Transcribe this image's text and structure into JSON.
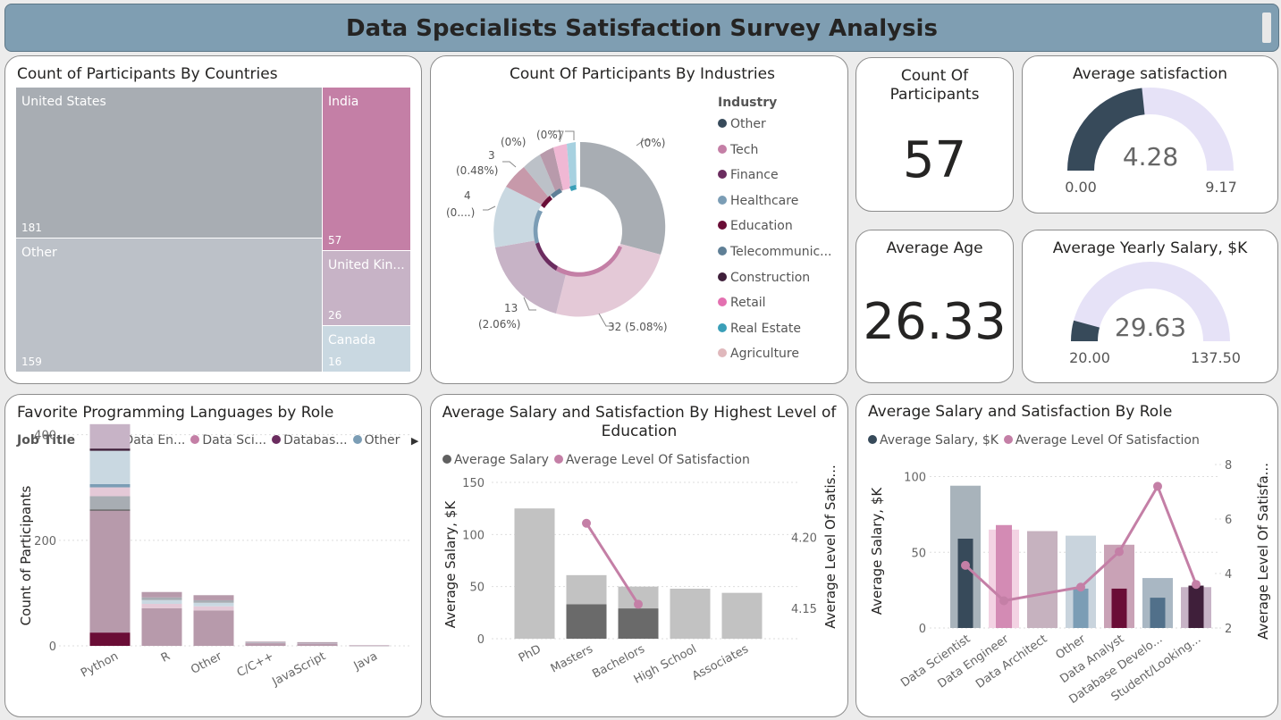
{
  "header": {
    "title": "Data Specialists Satisfaction Survey Analysis"
  },
  "countries": {
    "title": "Count of Participants By Countries",
    "cells": [
      {
        "name": "United States",
        "value": "181",
        "color": "#a8adb3"
      },
      {
        "name": "Other",
        "value": "159",
        "color": "#bcc1c8"
      },
      {
        "name": "India",
        "value": "57",
        "color": "#c47fa6"
      },
      {
        "name": "United Kin...",
        "value": "26",
        "color": "#c7b3c6"
      },
      {
        "name": "Canada",
        "value": "16",
        "color": "#c9d8e1"
      }
    ]
  },
  "industries": {
    "title": "Count Of Participants By Industries",
    "legend_title": "Industry",
    "legend": [
      {
        "label": "Other",
        "color": "#374a5a"
      },
      {
        "label": "Tech",
        "color": "#c47fa6"
      },
      {
        "label": "Finance",
        "color": "#6b2c5f"
      },
      {
        "label": "Healthcare",
        "color": "#7b9db5"
      },
      {
        "label": "Education",
        "color": "#6a0d36"
      },
      {
        "label": "Telecommunic...",
        "color": "#5f7f96"
      },
      {
        "label": "Construction",
        "color": "#3f1f3a"
      },
      {
        "label": "Retail",
        "color": "#e370b0"
      },
      {
        "label": "Real Estate",
        "color": "#3a9fb8"
      },
      {
        "label": "Agriculture",
        "color": "#e0b8bc"
      }
    ],
    "labels": [
      "(0%)",
      "(0%)",
      "(0%)",
      "3",
      "(0.48%)",
      "4",
      "(0....)",
      "13",
      "(2.06%)",
      "32 (5.08%)"
    ]
  },
  "kpi_count": {
    "title": "Count Of Participants",
    "value": "57"
  },
  "kpi_age": {
    "title": "Average Age",
    "value": "26.33"
  },
  "gauge_satisfaction": {
    "title": "Average satisfaction",
    "value": "4.28",
    "min": "0.00",
    "max": "9.17",
    "fraction": 0.467
  },
  "gauge_salary": {
    "title": "Average Yearly Salary, $K",
    "value": "29.63",
    "min": "20.00",
    "max": "137.50",
    "fraction": 0.084
  },
  "languages": {
    "title": "Favorite Programming Languages by Role",
    "legend_title": "Job Title",
    "legend": [
      {
        "label": "Data En...",
        "color": "#374a5a"
      },
      {
        "label": "Data Sci...",
        "color": "#c47fa6"
      },
      {
        "label": "Databas...",
        "color": "#6b2c5f"
      },
      {
        "label": "Other",
        "color": "#7b9db5"
      }
    ],
    "ylabel": "Count of Participants",
    "ticks": [
      "0",
      "200",
      "400"
    ]
  },
  "education": {
    "title_line1": "Average Salary and Satisfaction By Highest Level of",
    "title_line2": "Education",
    "legend": [
      {
        "label": "Average Salary",
        "color": "#606060"
      },
      {
        "label": "Average Level Of Satisfaction",
        "color": "#c47fa6"
      }
    ],
    "ylabel": "Average Salary, $K",
    "y2label": "Average Level Of Satis...",
    "ticks": [
      "0",
      "50",
      "100",
      "150"
    ],
    "ticks2": [
      "4.15",
      "4.20"
    ]
  },
  "role": {
    "title": "Average Salary and Satisfaction By Role",
    "legend": [
      {
        "label": "Average Salary, $K",
        "color": "#374a5a"
      },
      {
        "label": "Average Level Of Satisfaction",
        "color": "#c47fa6"
      }
    ],
    "ylabel": "Average Salary, $K",
    "y2label": "Average Level Of Satisfa...",
    "ticks": [
      "0",
      "50",
      "100"
    ],
    "ticks2": [
      "2",
      "4",
      "6",
      "8"
    ]
  },
  "chart_data": [
    {
      "type": "bar",
      "title": "Favorite Programming Languages by Role",
      "ylabel": "Count of Participants",
      "categories": [
        "Python",
        "R",
        "Other",
        "C/C++",
        "JavaScript",
        "Java"
      ],
      "values": [
        420,
        102,
        96,
        8,
        7,
        1
      ],
      "ylim": [
        0,
        440
      ]
    },
    {
      "type": "bar",
      "title": "Average Salary and Satisfaction By Highest Level of Education",
      "ylabel": "Average Salary, $K",
      "categories": [
        "PhD",
        "Masters",
        "Bachelors",
        "High School",
        "Associates"
      ],
      "series": [
        {
          "name": "Average Salary",
          "values": [
            125,
            61,
            50,
            48,
            44
          ]
        }
      ],
      "overlay": [
        null,
        33,
        29,
        null,
        null
      ],
      "line": {
        "name": "Average Level Of Satisfaction",
        "values": [
          null,
          4.21,
          4.153,
          null,
          null
        ]
      },
      "ylim": [
        0,
        150
      ],
      "y2lim": [
        4.13,
        4.24
      ]
    },
    {
      "type": "bar",
      "title": "Average Salary and Satisfaction By Role",
      "ylabel": "Average Salary, $K",
      "categories": [
        "Data Scientist",
        "Data Engineer",
        "Data Architect",
        "Other",
        "Data Analyst",
        "Database Develo...",
        "Student/Looking..."
      ],
      "series": [
        {
          "name": "Average Salary, $K",
          "values": [
            94,
            65,
            64,
            61,
            55,
            33,
            27
          ]
        }
      ],
      "overlay": [
        59,
        68,
        null,
        26,
        26,
        20,
        28
      ],
      "line": {
        "name": "Average Level Of Satisfaction",
        "values": [
          4.3,
          3.0,
          null,
          3.5,
          4.8,
          7.2,
          3.6
        ]
      },
      "ylim": [
        0,
        108
      ],
      "y2lim": [
        2,
        8
      ]
    }
  ]
}
